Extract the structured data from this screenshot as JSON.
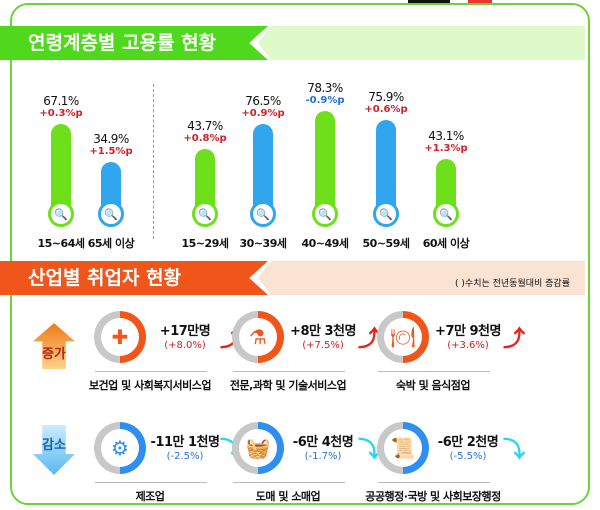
{
  "section1": {
    "title": "연령계층별 고용률 현황",
    "groups": [
      {
        "label": "15~64세",
        "value": "67.1%",
        "change": "+0.3%p",
        "color": "#6ee01b",
        "change_color": "#d0202a"
      },
      {
        "label": "65세 이상",
        "value": "34.9%",
        "change": "+1.5%p",
        "color": "#2fa6ee",
        "change_color": "#d0202a"
      },
      {
        "label": "15~29세",
        "value": "43.7%",
        "change": "+0.8%p",
        "color": "#6ee01b",
        "change_color": "#d0202a"
      },
      {
        "label": "30~39세",
        "value": "76.5%",
        "change": "+0.9%p",
        "color": "#2fa6ee",
        "change_color": "#d0202a"
      },
      {
        "label": "40~49세",
        "value": "78.3%",
        "change": "-0.9%p",
        "color": "#6ee01b",
        "change_color": "#2a6fd6"
      },
      {
        "label": "50~59세",
        "value": "75.9%",
        "change": "+0.6%p",
        "color": "#2fa6ee",
        "change_color": "#d0202a"
      },
      {
        "label": "60세 이상",
        "value": "43.1%",
        "change": "+1.3%p",
        "color": "#6ee01b",
        "change_color": "#d0202a"
      }
    ]
  },
  "section2": {
    "title": "산업별 취업자 현황",
    "note": "( )수치는 전년동월대비 증감률",
    "increase_label": "증가",
    "decrease_label": "감소",
    "increase": [
      {
        "name": "보건업 및 사회복지서비스업",
        "count": "+17만명",
        "pct": "(+8.0%)",
        "icon": "✚"
      },
      {
        "name": "전문,과학 및 기술서비스업",
        "count": "+8만 3천명",
        "pct": "(+7.5%)",
        "icon": "⚗"
      },
      {
        "name": "숙박 및 음식점업",
        "count": "+7만 9천명",
        "pct": "(+3.6%)",
        "icon": "🍽"
      }
    ],
    "decrease": [
      {
        "name": "제조업",
        "count": "-11만 1천명",
        "pct": "(-2.5%)",
        "icon": "⚙"
      },
      {
        "name": "도매 및 소매업",
        "count": "-6만 4천명",
        "pct": "(-1.7%)",
        "icon": "🧺"
      },
      {
        "name": "공공행정·국방 및 사회보장행정",
        "count": "-6만 2천명",
        "pct": "(-5.5%)",
        "icon": "📜"
      }
    ]
  },
  "colors": {
    "green": "#6ee01b",
    "blue": "#2fa6ee",
    "orange": "#f0561a",
    "red": "#d0202a"
  }
}
